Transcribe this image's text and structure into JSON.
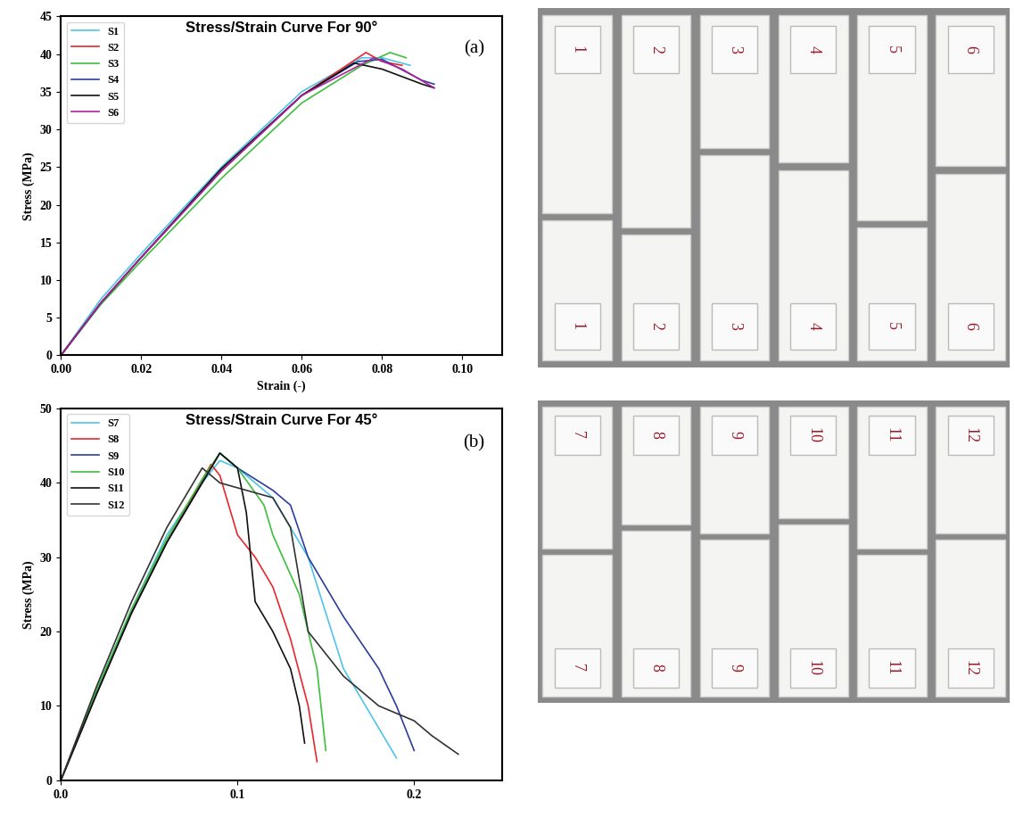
{
  "chart_data": [
    {
      "type": "line",
      "title": "Stress/Strain Curve For 90°",
      "annotation": "(a)",
      "x_label": "Strain (-)",
      "y_label": "Stress (MPa)",
      "legend": "upper left",
      "xlim": [
        0,
        0.11
      ],
      "xticks": [
        {
          "value": 0,
          "label": "0.00"
        },
        0.02,
        0.04,
        0.06,
        0.08,
        {
          "value": 0.1,
          "label": "0.10"
        }
      ],
      "ylim": [
        0,
        45
      ],
      "yticks": [
        0,
        5,
        10,
        15,
        20,
        25,
        30,
        35,
        40,
        45
      ],
      "series": [
        {
          "name": "S1",
          "color": "#4fc3e8",
          "x": [
            0,
            0.01,
            0.02,
            0.04,
            0.06,
            0.075,
            0.08,
            0.087
          ],
          "values": [
            0,
            7.5,
            13.5,
            25,
            35,
            39.5,
            39.5,
            38.5
          ]
        },
        {
          "name": "S2",
          "color": "#e8262b",
          "x": [
            0,
            0.01,
            0.02,
            0.04,
            0.06,
            0.076,
            0.08,
            0.085
          ],
          "values": [
            0,
            7,
            13,
            24.5,
            34.5,
            40.2,
            39,
            38.5
          ]
        },
        {
          "name": "S3",
          "color": "#3dbf3d",
          "x": [
            0,
            0.01,
            0.02,
            0.04,
            0.06,
            0.075,
            0.082,
            0.086
          ],
          "values": [
            0,
            6.8,
            12.5,
            23.5,
            33.5,
            38.5,
            40.2,
            39.5
          ]
        },
        {
          "name": "S4",
          "color": "#2b3d9e",
          "x": [
            0,
            0.01,
            0.02,
            0.04,
            0.06,
            0.074,
            0.08,
            0.09,
            0.093
          ],
          "values": [
            0,
            7,
            13,
            24.5,
            34.5,
            39,
            39.3,
            36.5,
            36
          ]
        },
        {
          "name": "S5",
          "color": "#111111",
          "x": [
            0,
            0.01,
            0.02,
            0.04,
            0.06,
            0.073,
            0.08,
            0.09,
            0.093
          ],
          "values": [
            0,
            7,
            13,
            24.8,
            34.5,
            38.8,
            38,
            36,
            35.5
          ]
        },
        {
          "name": "S6",
          "color": "#b0209c",
          "x": [
            0,
            0.01,
            0.02,
            0.04,
            0.06,
            0.078,
            0.085,
            0.093
          ],
          "values": [
            0,
            7,
            13,
            24.5,
            34.5,
            39.5,
            38,
            35.5
          ]
        }
      ]
    },
    {
      "type": "line",
      "title": "Stress/Strain Curve For 45°",
      "annotation": "(b)",
      "y_label": "Stress (MPa)",
      "legend": "upper left",
      "xlim": [
        0,
        0.25
      ],
      "xticks": [
        {
          "value": 0,
          "label": "0.0"
        },
        0.1,
        0.2
      ],
      "ylim": [
        0,
        50
      ],
      "yticks": [
        0,
        10,
        20,
        30,
        40,
        50
      ],
      "series": [
        {
          "name": "S7",
          "color": "#4fc3e8",
          "x": [
            0,
            0.02,
            0.04,
            0.06,
            0.08,
            0.09,
            0.1,
            0.12,
            0.14,
            0.16,
            0.18,
            0.19
          ],
          "values": [
            0,
            12,
            23,
            33,
            40,
            43,
            42,
            38,
            30,
            15,
            7,
            3
          ]
        },
        {
          "name": "S8",
          "color": "#e8262b",
          "x": [
            0,
            0.02,
            0.04,
            0.06,
            0.085,
            0.09,
            0.1,
            0.11,
            0.12,
            0.13,
            0.14,
            0.145
          ],
          "values": [
            0,
            11.5,
            22.5,
            32,
            42.5,
            41,
            33,
            30,
            26,
            19,
            10,
            2.5
          ]
        },
        {
          "name": "S9",
          "color": "#2b3d9e",
          "x": [
            0,
            0.02,
            0.04,
            0.06,
            0.08,
            0.09,
            0.1,
            0.12,
            0.13,
            0.14,
            0.16,
            0.18,
            0.19,
            0.2
          ],
          "values": [
            0,
            11.5,
            22.5,
            32,
            40,
            44,
            42,
            39,
            37,
            30,
            22,
            15,
            10,
            4
          ]
        },
        {
          "name": "S10",
          "color": "#3dbf3d",
          "x": [
            0,
            0.02,
            0.04,
            0.06,
            0.08,
            0.09,
            0.1,
            0.115,
            0.12,
            0.135,
            0.145,
            0.15
          ],
          "values": [
            0,
            12,
            23,
            32.5,
            40.5,
            44,
            42,
            37,
            33,
            25,
            15,
            4
          ]
        },
        {
          "name": "S11",
          "color": "#111111",
          "x": [
            0,
            0.02,
            0.04,
            0.06,
            0.08,
            0.09,
            0.1,
            0.105,
            0.11,
            0.12,
            0.13,
            0.135,
            0.138
          ],
          "values": [
            0,
            11.5,
            22.5,
            32,
            40,
            44,
            42,
            36,
            24,
            20,
            15,
            10,
            5
          ]
        },
        {
          "name": "S12",
          "color": "#333333",
          "x": [
            0,
            0.02,
            0.04,
            0.06,
            0.08,
            0.09,
            0.12,
            0.13,
            0.14,
            0.16,
            0.18,
            0.2,
            0.21,
            0.225
          ],
          "values": [
            0,
            12.5,
            24,
            34,
            42,
            40,
            38,
            34,
            20,
            14,
            10,
            8,
            6,
            3.5
          ]
        }
      ]
    }
  ],
  "specimens": [
    {
      "labels": [
        "1",
        "2",
        "3",
        "4",
        "5",
        "6"
      ]
    },
    {
      "labels": [
        "7",
        "8",
        "9",
        "10",
        "11",
        "12"
      ]
    }
  ]
}
